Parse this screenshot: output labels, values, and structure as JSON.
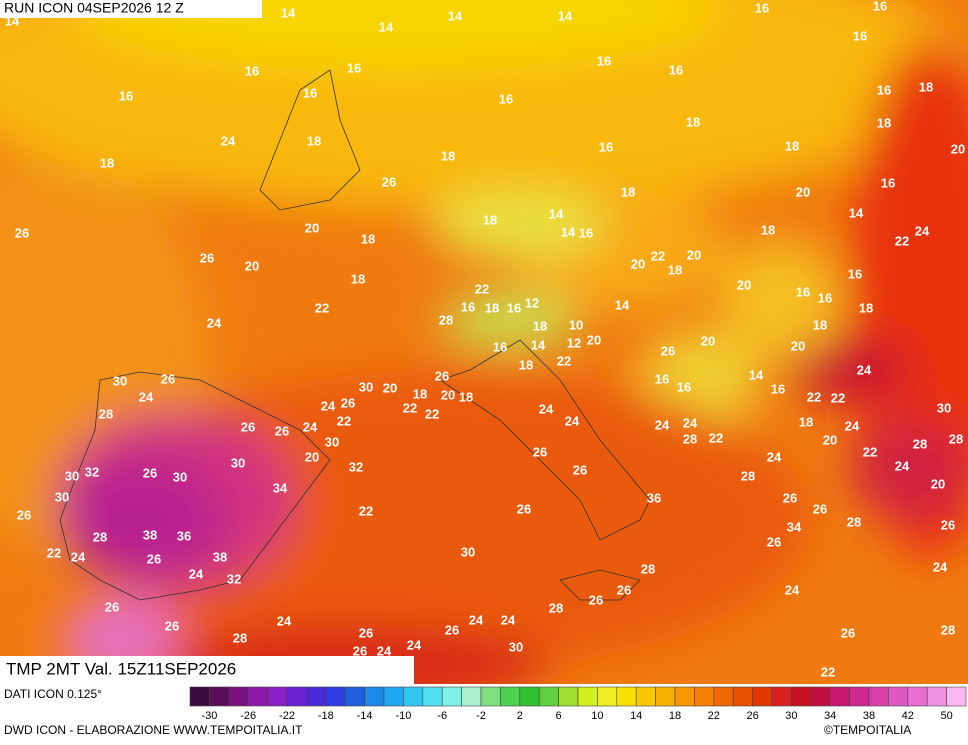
{
  "header": {
    "run": "RUN ICON 04SEP2026 12 Z",
    "field": "TMP 2MT Val. 15Z11SEP2026"
  },
  "map": {
    "labels": [
      14,
      14,
      14,
      14,
      14,
      16,
      16,
      16,
      16,
      16,
      16,
      16,
      16,
      16,
      16,
      16,
      18,
      24,
      18,
      18,
      18,
      16,
      18,
      18,
      18,
      20,
      26,
      18,
      20,
      16,
      26,
      20,
      18,
      18,
      14,
      14,
      16,
      18,
      14,
      22,
      24,
      26,
      20,
      18,
      20,
      22,
      18,
      20,
      16,
      24,
      22,
      22,
      16,
      18,
      16,
      12,
      14,
      20,
      16,
      16,
      18,
      28,
      18,
      10,
      16,
      14,
      12,
      20,
      18,
      20,
      26,
      20,
      18,
      22,
      24,
      30,
      26,
      24,
      28,
      30,
      20,
      26,
      16,
      16,
      14,
      16,
      18,
      20,
      18,
      24,
      26,
      22,
      22,
      24,
      22,
      22,
      30,
      26,
      26,
      24,
      22,
      24,
      24,
      24,
      18,
      24,
      28,
      28,
      30,
      20,
      30,
      28,
      22,
      20,
      22,
      26,
      30,
      32,
      26,
      26,
      24,
      24,
      30,
      32,
      34,
      28,
      20,
      30,
      36,
      26,
      26,
      22,
      26,
      26,
      28,
      26,
      28,
      38,
      36,
      34,
      22,
      24,
      26,
      38,
      30,
      26,
      24,
      32,
      28,
      24,
      26,
      28,
      26,
      26,
      24,
      26,
      24,
      28,
      26,
      24,
      26,
      24,
      24,
      26,
      28,
      26,
      24,
      30,
      22,
      30,
      26
    ]
  },
  "colorbar": {
    "source": "DATI ICON 0.125°",
    "colors": [
      "#3d0a3d",
      "#5a0e5a",
      "#7a1280",
      "#8e18a8",
      "#8a1fc4",
      "#6a22d0",
      "#4a2ad8",
      "#2e3ce0",
      "#2060e0",
      "#1e88e8",
      "#20a8f0",
      "#30c8f0",
      "#50e0f0",
      "#80f0e8",
      "#a8f0d0",
      "#80e080",
      "#50d050",
      "#30c030",
      "#60d040",
      "#a0e030",
      "#d0f020",
      "#f0f020",
      "#f8e000",
      "#f8c800",
      "#f8b000",
      "#f89800",
      "#f88000",
      "#f06800",
      "#e85000",
      "#e03800",
      "#d82020",
      "#c81020",
      "#c01040",
      "#c81870",
      "#d02890",
      "#d840a8",
      "#e058c0",
      "#e870d0",
      "#f090e0",
      "#f8b8f0"
    ],
    "ticks": [
      -30,
      -26,
      -22,
      -18,
      -14,
      -10,
      -6,
      -2,
      2,
      6,
      10,
      14,
      18,
      22,
      26,
      30,
      34,
      38,
      42,
      50
    ]
  },
  "footer": {
    "credit": "DWD ICON - ELABORAZIONE WWW.TEMPOITALIA.IT",
    "copyright": "©TEMPOITALIA"
  }
}
